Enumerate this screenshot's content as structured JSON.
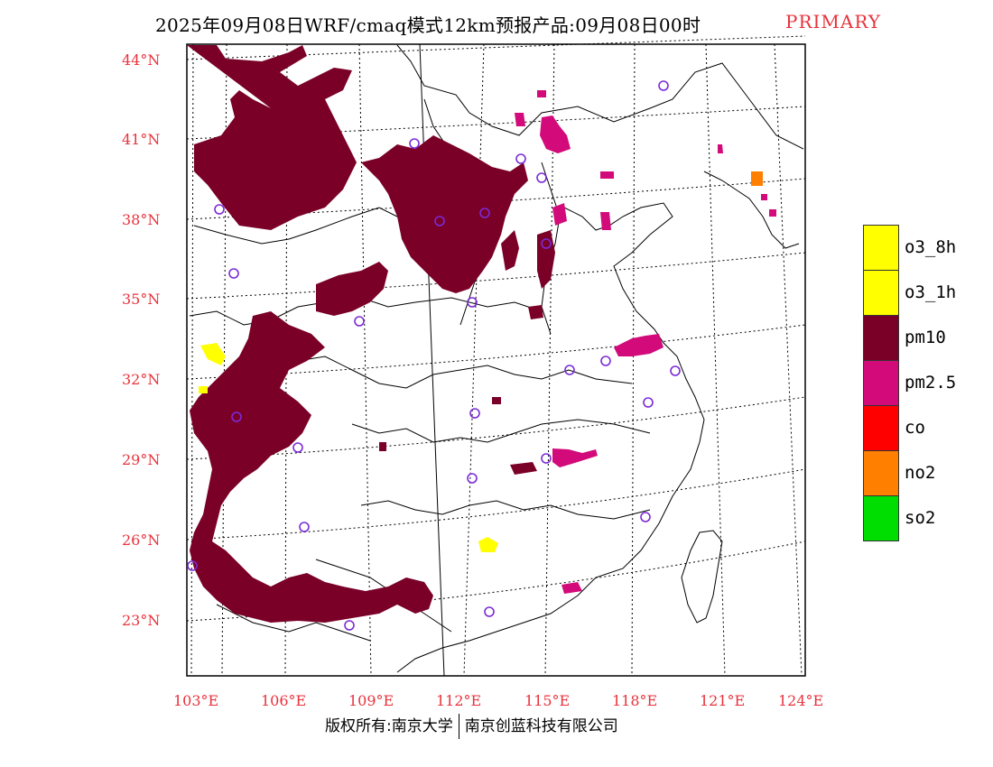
{
  "title": {
    "main": "2025年09月08日WRF/cmaq模式12km预报产品:09月08日00时",
    "tag": "PRIMARY"
  },
  "axes": {
    "lat_labels": [
      "44°N",
      "41°N",
      "38°N",
      "35°N",
      "32°N",
      "29°N",
      "26°N",
      "23°N"
    ],
    "lon_labels": [
      "103°E",
      "106°E",
      "109°E",
      "112°E",
      "115°E",
      "118°E",
      "121°E",
      "124°E"
    ]
  },
  "legend": {
    "items": [
      {
        "label": "o3_8h",
        "color": "#ffff00"
      },
      {
        "label": "o3_1h",
        "color": "#ffff00"
      },
      {
        "label": "pm10",
        "color": "#7a0028"
      },
      {
        "label": "pm2.5",
        "color": "#d20a7a"
      },
      {
        "label": "co",
        "color": "#ff0000"
      },
      {
        "label": "no2",
        "color": "#ff7f00"
      },
      {
        "label": "so2",
        "color": "#00dd00"
      }
    ]
  },
  "colors": {
    "pm10": "#7a0028",
    "pm25": "#d20a7a",
    "o3": "#ffff00",
    "no2": "#ff7f00",
    "station": "#7b2bd6",
    "accent_text": "#e8323c"
  },
  "footer": {
    "left": "版权所有:南京大学",
    "right": "南京创蓝科技有限公司"
  }
}
